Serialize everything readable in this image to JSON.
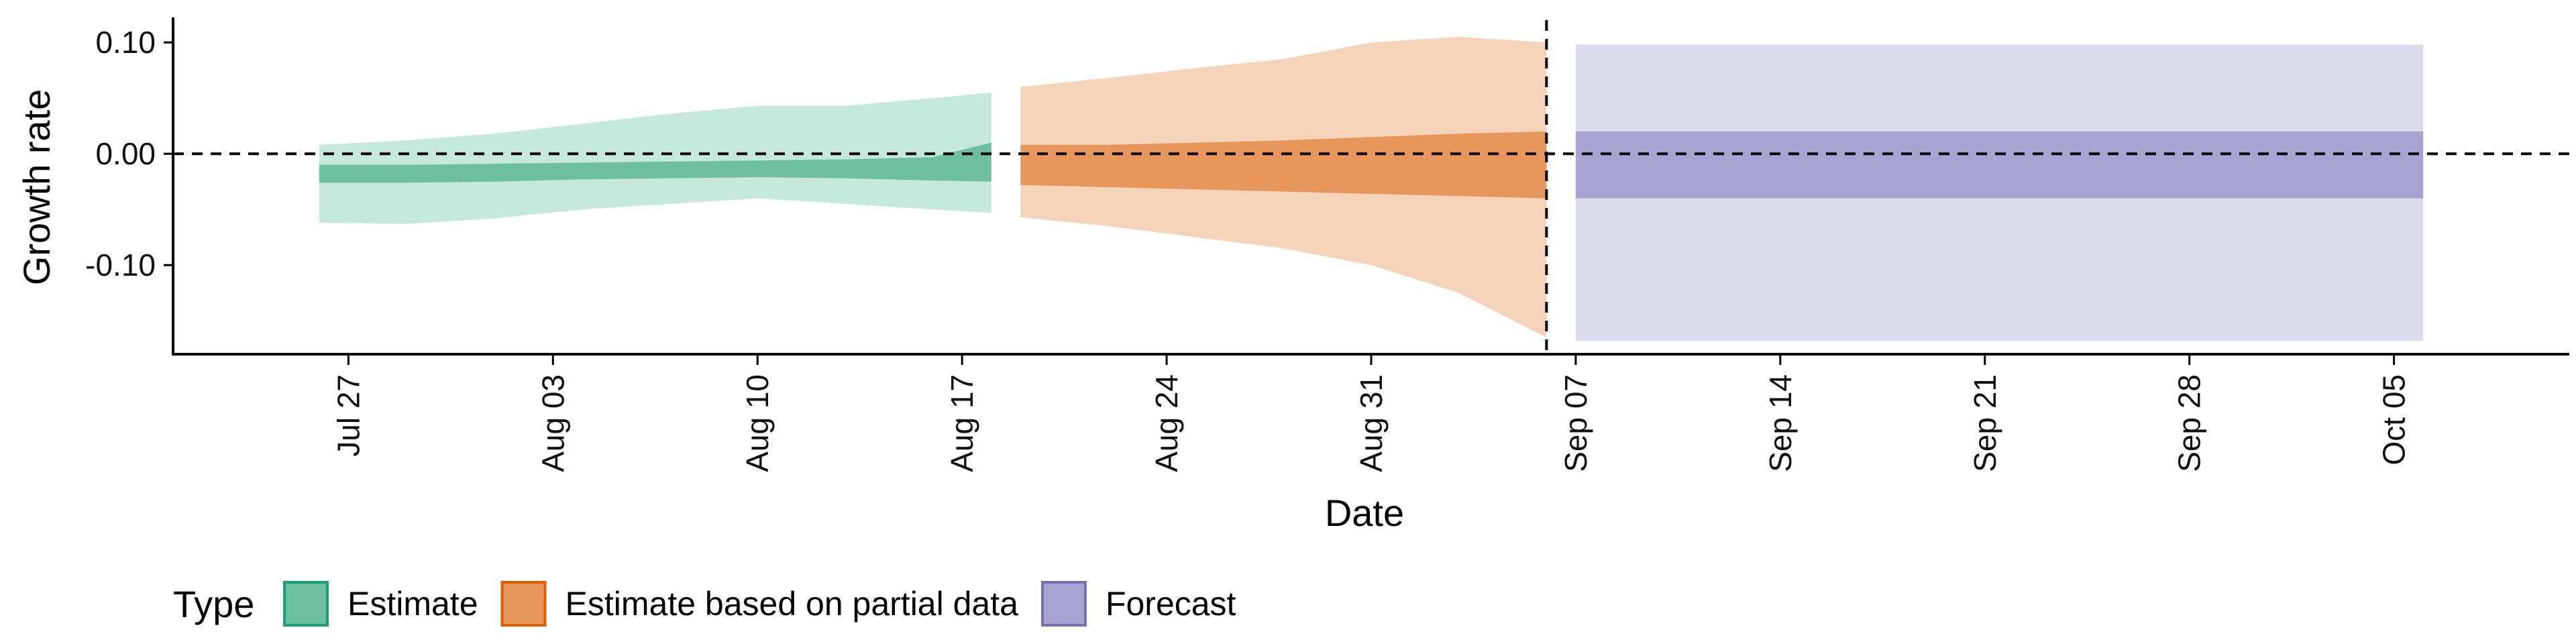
{
  "chart_data": {
    "type": "area",
    "xlabel": "Date",
    "ylabel": "Growth rate",
    "ylim": [
      -0.18,
      0.12
    ],
    "y_ticks": [
      {
        "value": 0.1,
        "label": "0.10"
      },
      {
        "value": 0.0,
        "label": "0.00"
      },
      {
        "value": -0.1,
        "label": "-0.10"
      }
    ],
    "x_range": [
      "2020-07-21",
      "2020-10-11"
    ],
    "x_ticks": [
      {
        "date": "2020-07-27",
        "label": "Jul 27"
      },
      {
        "date": "2020-08-03",
        "label": "Aug 03"
      },
      {
        "date": "2020-08-10",
        "label": "Aug 10"
      },
      {
        "date": "2020-08-17",
        "label": "Aug 17"
      },
      {
        "date": "2020-08-24",
        "label": "Aug 24"
      },
      {
        "date": "2020-08-31",
        "label": "Aug 31"
      },
      {
        "date": "2020-09-07",
        "label": "Sep 07"
      },
      {
        "date": "2020-09-14",
        "label": "Sep 14"
      },
      {
        "date": "2020-09-21",
        "label": "Sep 21"
      },
      {
        "date": "2020-09-28",
        "label": "Sep 28"
      },
      {
        "date": "2020-10-05",
        "label": "Oct 05"
      }
    ],
    "reference_lines": {
      "horizontal_y": 0.0,
      "vertical_date": "2020-09-06"
    },
    "grid": false,
    "legend": {
      "title": "Type",
      "position": "bottom",
      "entries": [
        {
          "label": "Estimate",
          "fill": "#6dbfa2",
          "stroke": "#1b9e77"
        },
        {
          "label": "Estimate based on partial data",
          "fill": "#e8975c",
          "stroke": "#d95f02"
        },
        {
          "label": "Forecast",
          "fill": "#a9a3d1",
          "stroke": "#7570b3"
        }
      ]
    },
    "series": [
      {
        "name": "Estimate",
        "outer_color": "#c6e7dc",
        "inner_color": "#6dbfa2",
        "points": [
          {
            "date": "2020-07-26",
            "lo90": -0.062,
            "lo50": -0.026,
            "hi50": -0.01,
            "hi90": 0.008
          },
          {
            "date": "2020-07-29",
            "lo90": -0.063,
            "lo50": -0.026,
            "hi50": -0.01,
            "hi90": 0.012
          },
          {
            "date": "2020-08-01",
            "lo90": -0.058,
            "lo50": -0.025,
            "hi50": -0.009,
            "hi90": 0.018
          },
          {
            "date": "2020-08-04",
            "lo90": -0.05,
            "lo50": -0.023,
            "hi50": -0.008,
            "hi90": 0.027
          },
          {
            "date": "2020-08-07",
            "lo90": -0.045,
            "lo50": -0.022,
            "hi50": -0.007,
            "hi90": 0.036
          },
          {
            "date": "2020-08-10",
            "lo90": -0.04,
            "lo50": -0.021,
            "hi50": -0.006,
            "hi90": 0.043
          },
          {
            "date": "2020-08-13",
            "lo90": -0.045,
            "lo50": -0.022,
            "hi50": -0.005,
            "hi90": 0.043
          },
          {
            "date": "2020-08-16",
            "lo90": -0.05,
            "lo50": -0.024,
            "hi50": -0.003,
            "hi90": 0.05
          },
          {
            "date": "2020-08-18",
            "lo90": -0.053,
            "lo50": -0.025,
            "hi50": 0.01,
            "hi90": 0.055
          }
        ]
      },
      {
        "name": "Estimate based on partial data",
        "outer_color": "#f5d3bb",
        "inner_color": "#e8975c",
        "points": [
          {
            "date": "2020-08-19",
            "lo90": -0.057,
            "lo50": -0.028,
            "hi50": 0.008,
            "hi90": 0.06
          },
          {
            "date": "2020-08-22",
            "lo90": -0.065,
            "lo50": -0.03,
            "hi50": 0.008,
            "hi90": 0.068
          },
          {
            "date": "2020-08-25",
            "lo90": -0.075,
            "lo50": -0.032,
            "hi50": 0.01,
            "hi90": 0.077
          },
          {
            "date": "2020-08-28",
            "lo90": -0.085,
            "lo50": -0.034,
            "hi50": 0.012,
            "hi90": 0.085
          },
          {
            "date": "2020-08-31",
            "lo90": -0.1,
            "lo50": -0.036,
            "hi50": 0.015,
            "hi90": 0.1
          },
          {
            "date": "2020-09-03",
            "lo90": -0.125,
            "lo50": -0.038,
            "hi50": 0.018,
            "hi90": 0.105
          },
          {
            "date": "2020-09-06",
            "lo90": -0.165,
            "lo50": -0.04,
            "hi50": 0.02,
            "hi90": 0.1
          }
        ]
      },
      {
        "name": "Forecast",
        "outer_color": "#dcdbeb",
        "inner_color": "#a9a3d1",
        "points": [
          {
            "date": "2020-09-07",
            "lo90": -0.168,
            "lo50": -0.04,
            "hi50": 0.02,
            "hi90": 0.098
          },
          {
            "date": "2020-10-06",
            "lo90": -0.168,
            "lo50": -0.04,
            "hi50": 0.02,
            "hi90": 0.098
          }
        ]
      }
    ]
  }
}
